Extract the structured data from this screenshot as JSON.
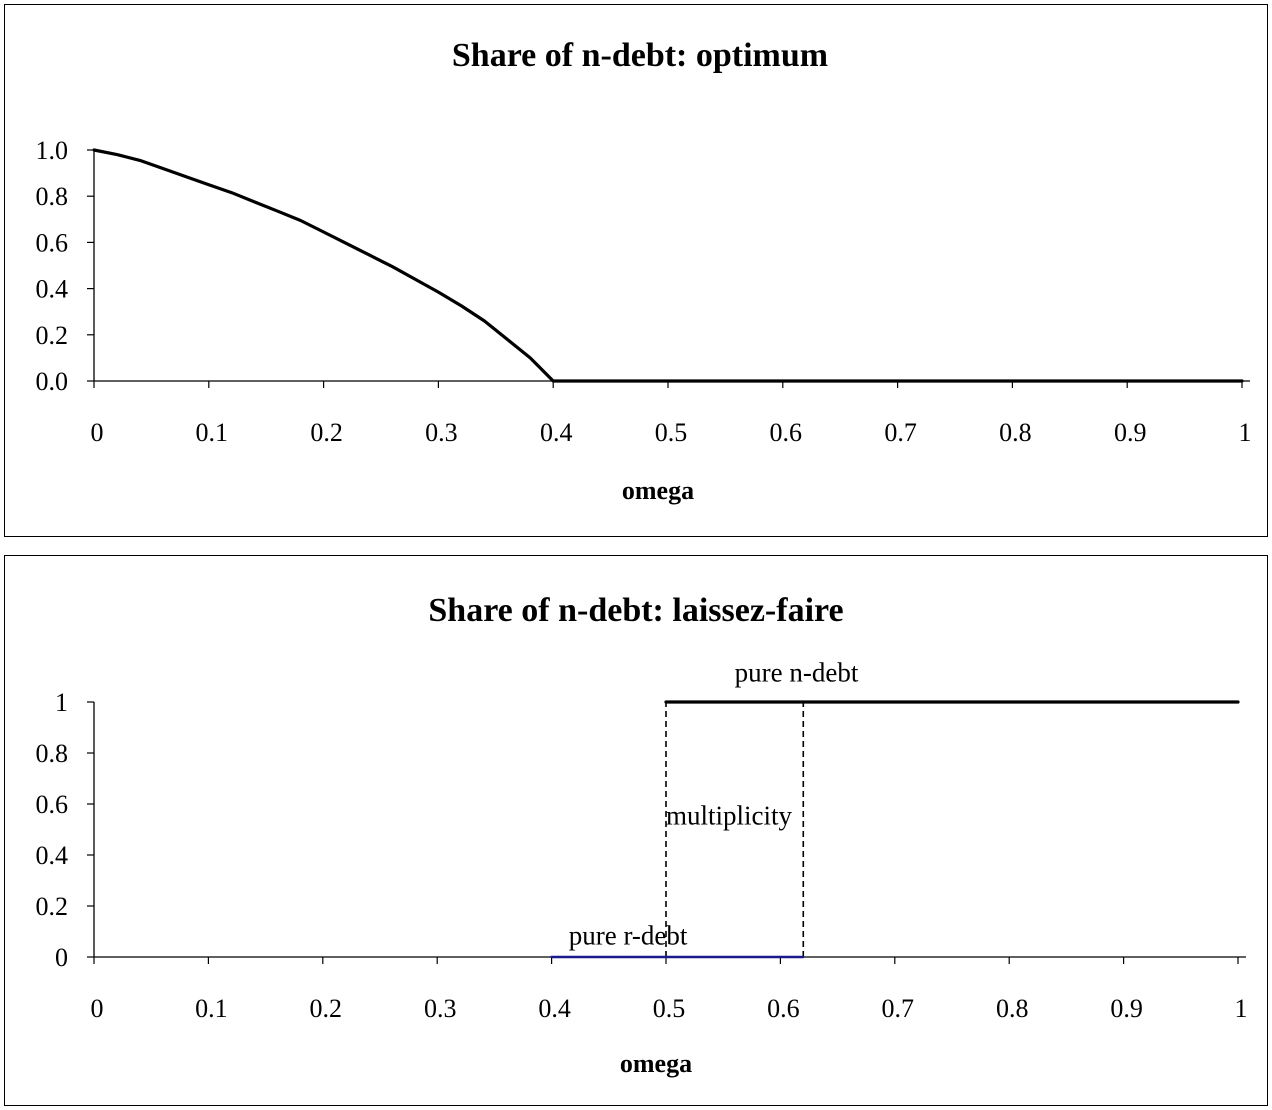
{
  "chart_data": [
    {
      "type": "line",
      "title": "Share of n-debt: optimum",
      "xlabel": "omega",
      "ylabel": "",
      "xlim": [
        0,
        1
      ],
      "ylim": [
        0,
        1
      ],
      "x_ticks": [
        "0",
        "0.1",
        "0.2",
        "0.3",
        "0.4",
        "0.5",
        "0.6",
        "0.7",
        "0.8",
        "0.9",
        "1"
      ],
      "y_ticks": [
        "0.0",
        "0.2",
        "0.4",
        "0.6",
        "0.8",
        "1.0"
      ],
      "grid": false,
      "series": [
        {
          "color": "#000000",
          "x": [
            0,
            0.02,
            0.04,
            0.06,
            0.08,
            0.1,
            0.12,
            0.14,
            0.16,
            0.18,
            0.2,
            0.22,
            0.24,
            0.26,
            0.28,
            0.3,
            0.32,
            0.34,
            0.36,
            0.38,
            0.4,
            0.5,
            0.6,
            0.7,
            0.8,
            0.9,
            1.0
          ],
          "y": [
            1.0,
            0.98,
            0.955,
            0.92,
            0.885,
            0.85,
            0.815,
            0.775,
            0.735,
            0.695,
            0.645,
            0.595,
            0.545,
            0.495,
            0.44,
            0.385,
            0.325,
            0.26,
            0.18,
            0.1,
            0.0,
            0.0,
            0.0,
            0.0,
            0.0,
            0.0,
            0.0
          ]
        }
      ]
    },
    {
      "type": "line",
      "title": "Share of n-debt: laissez-faire",
      "xlabel": "omega",
      "ylabel": "",
      "xlim": [
        0,
        1
      ],
      "ylim": [
        0,
        1
      ],
      "x_ticks": [
        "0",
        "0.1",
        "0.2",
        "0.3",
        "0.4",
        "0.5",
        "0.6",
        "0.7",
        "0.8",
        "0.9",
        "1"
      ],
      "y_ticks": [
        "0",
        "0.2",
        "0.4",
        "0.6",
        "0.8",
        "1"
      ],
      "grid": false,
      "series": [
        {
          "label": "pure n-debt",
          "color": "#000000",
          "x": [
            0.5,
            1.0
          ],
          "y": [
            1,
            1
          ]
        },
        {
          "label": "pure r-debt",
          "color": "#1a1a8c",
          "x": [
            0.4,
            0.62
          ],
          "y": [
            0,
            0
          ]
        }
      ],
      "dashed_lines": [
        {
          "x": [
            0.5,
            0.5
          ],
          "y": [
            0,
            1
          ]
        },
        {
          "x": [
            0.62,
            0.62
          ],
          "y": [
            0,
            1
          ]
        }
      ],
      "annotations": [
        {
          "text": "pure n-debt",
          "x": 0.56,
          "y": 1.08
        },
        {
          "text": "multiplicity",
          "x": 0.5,
          "y": 0.52
        },
        {
          "text": "pure r-debt",
          "x": 0.415,
          "y": 0.05
        }
      ]
    }
  ]
}
